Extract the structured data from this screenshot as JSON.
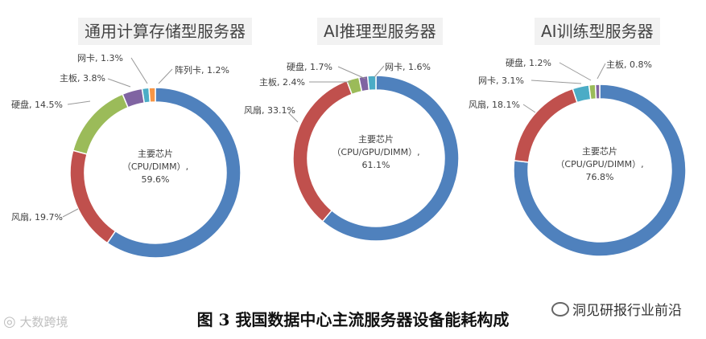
{
  "chart_data": [
    {
      "type": "pie",
      "title": "通用计算存储型服务器",
      "categories": [
        "主要芯片（CPU/DIMM）",
        "风扇",
        "硬盘",
        "主板",
        "网卡",
        "阵列卡"
      ],
      "values": [
        59.6,
        19.7,
        14.5,
        3.8,
        1.3,
        1.2
      ],
      "labels": [
        "主要芯片\n（CPU/DIMM）,\n59.6%",
        "风扇, 19.7%",
        "硬盘, 14.5%",
        "主板, 3.8%",
        "网卡, 1.3%",
        "阵列卡, 1.2%"
      ],
      "colors": [
        "#4f81bd",
        "#c0504d",
        "#9bbb59",
        "#8064a2",
        "#4bacc6",
        "#f79646"
      ]
    },
    {
      "type": "pie",
      "title": "AI推理型服务器",
      "categories": [
        "主要芯片（CPU/GPU/DIMM）",
        "风扇",
        "主板",
        "硬盘",
        "网卡"
      ],
      "values": [
        61.1,
        33.1,
        2.4,
        1.7,
        1.6
      ],
      "labels": [
        "主要芯片\n（CPU/GPU/DIMM）,\n61.1%",
        "风扇, 33.1%",
        "主板, 2.4%",
        "硬盘, 1.7%",
        "网卡, 1.6%"
      ],
      "colors": [
        "#4f81bd",
        "#c0504d",
        "#9bbb59",
        "#8064a2",
        "#4bacc6"
      ]
    },
    {
      "type": "pie",
      "title": "AI训练型服务器",
      "categories": [
        "主要芯片（CPU/GPU/DIMM）",
        "风扇",
        "网卡",
        "硬盘",
        "主板"
      ],
      "values": [
        76.8,
        18.1,
        3.1,
        1.2,
        0.8
      ],
      "labels": [
        "主要芯片\n（CPU/GPU/DIMM）,\n76.8%",
        "风扇, 18.1%",
        "网卡, 3.1%",
        "硬盘, 1.2%",
        "主板, 0.8%"
      ],
      "colors": [
        "#4f81bd",
        "#c0504d",
        "#4bacc6",
        "#9bbb59",
        "#8064a2"
      ]
    }
  ],
  "caption": "图 3  我国数据中心主流服务器设备能耗构成",
  "source": "洞见研报行业前沿",
  "watermark": "大数跨境"
}
